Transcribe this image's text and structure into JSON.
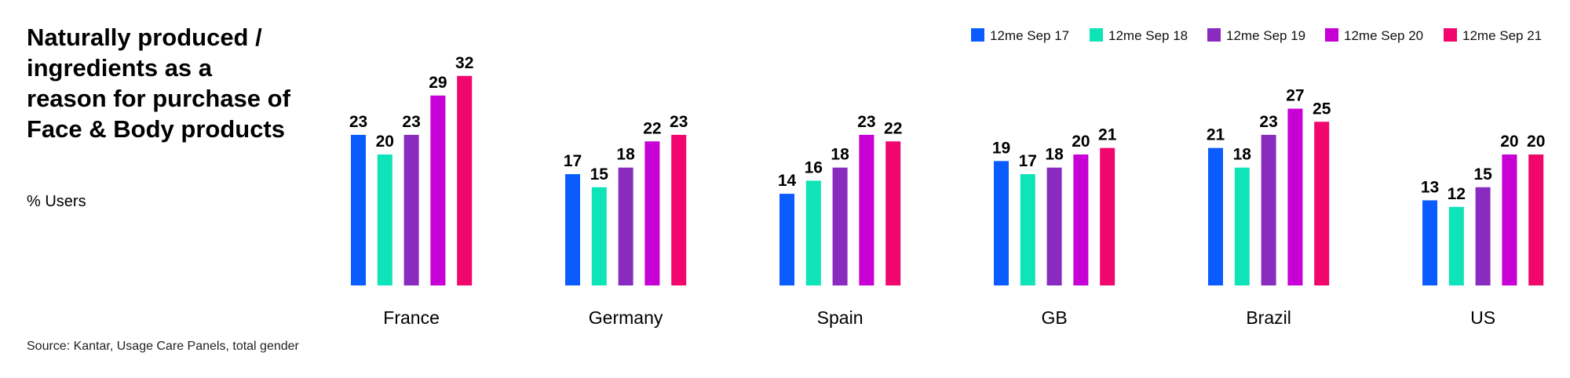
{
  "header": {
    "title": "Naturally produced / ingredients as a reason for purchase of Face & Body products",
    "subtitle": "% Users"
  },
  "footer": {
    "source": "Source: Kantar, Usage Care Panels, total gender"
  },
  "colors": {
    "series": [
      "#0a5cff",
      "#0fe3b8",
      "#8a2bbf",
      "#c700d6",
      "#f0066c"
    ]
  },
  "chart_data": {
    "type": "bar",
    "title": "Naturally produced / ingredients as a reason for purchase of Face & Body products",
    "ylabel": "% Users",
    "ylim": [
      0,
      35
    ],
    "grid": false,
    "legend": "top-right",
    "categories": [
      "France",
      "Germany",
      "Spain",
      "GB",
      "Brazil",
      "US"
    ],
    "series": [
      {
        "name": "12me Sep 17",
        "values": [
          23,
          17,
          14,
          19,
          21,
          13
        ]
      },
      {
        "name": "12me Sep 18",
        "values": [
          20,
          15,
          16,
          17,
          18,
          12
        ]
      },
      {
        "name": "12me Sep 19",
        "values": [
          23,
          18,
          18,
          18,
          23,
          15
        ]
      },
      {
        "name": "12me Sep 20",
        "values": [
          29,
          22,
          23,
          20,
          27,
          20
        ]
      },
      {
        "name": "12me Sep 21",
        "values": [
          32,
          23,
          22,
          21,
          25,
          20
        ]
      }
    ]
  }
}
